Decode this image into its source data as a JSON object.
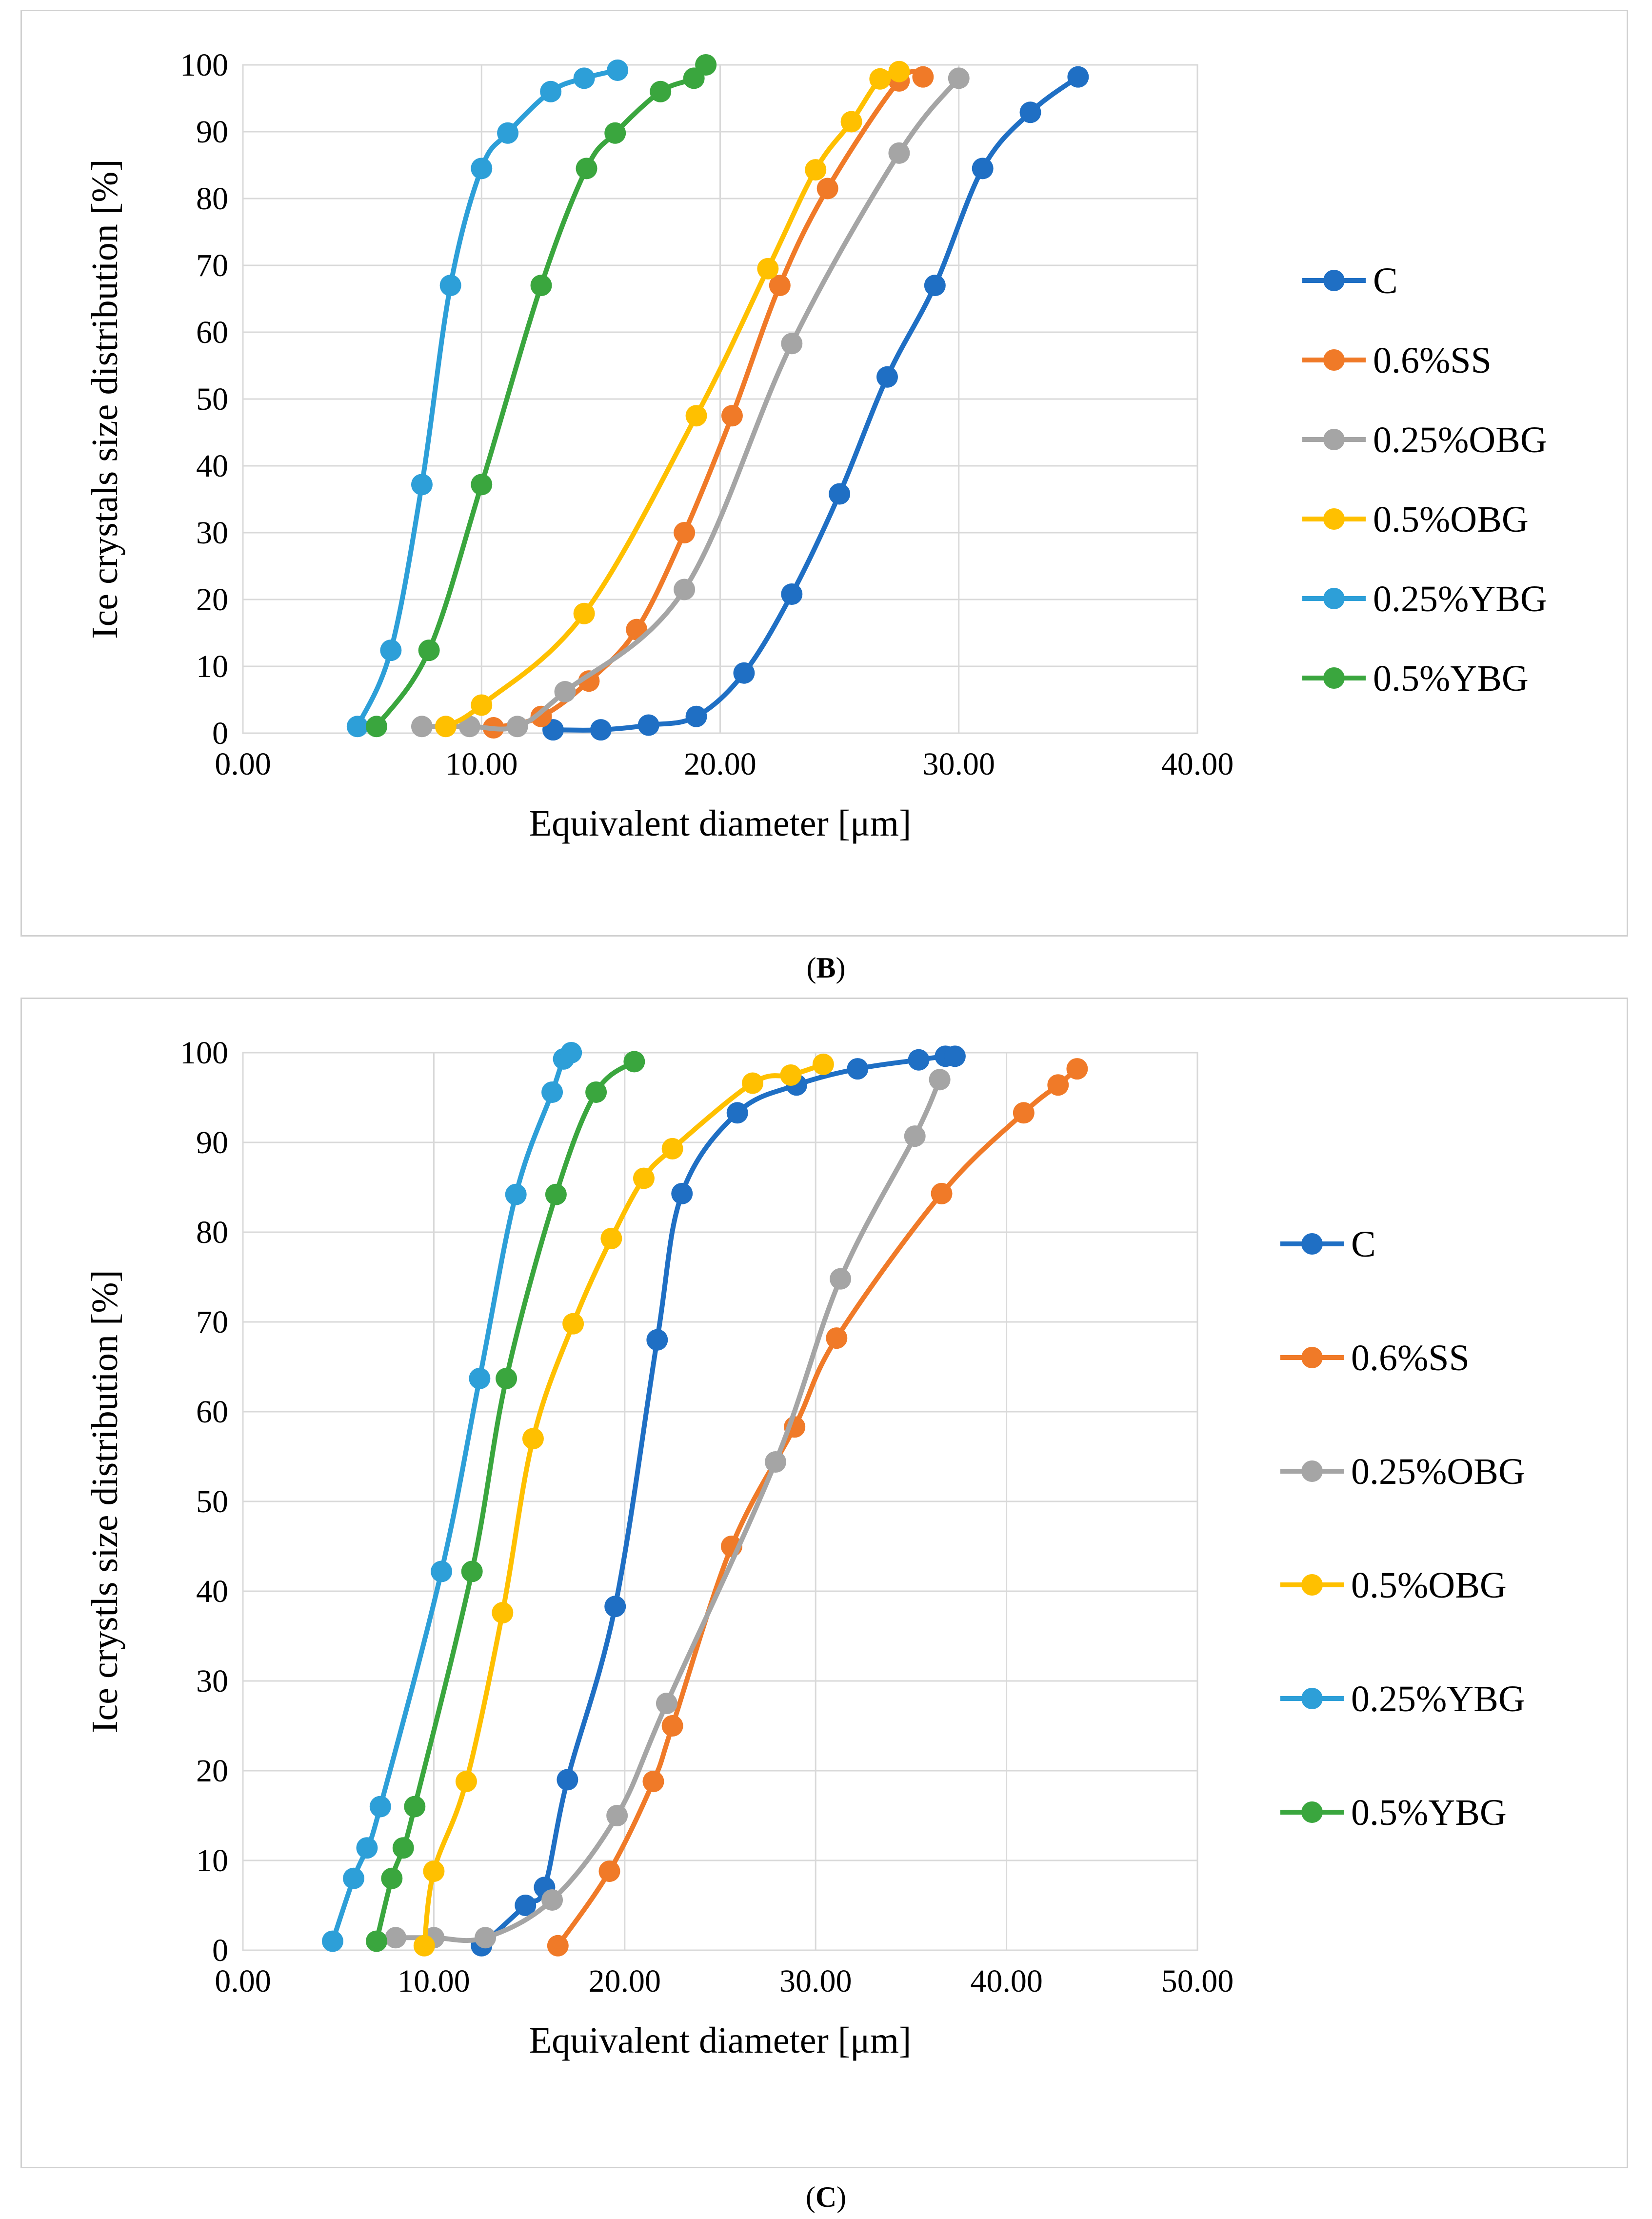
{
  "charts": [
    {
      "id": "B",
      "caption_open": "(",
      "caption_letter": "B",
      "caption_close": ")",
      "chart_data": {
        "type": "line",
        "xlabel": "Equivalent diameter [μm]",
        "ylabel": "Ice crystals size distribution [%]",
        "xlim": [
          0,
          40
        ],
        "ylim": [
          0,
          100
        ],
        "xticks": [
          "0.00",
          "10.00",
          "20.00",
          "30.00",
          "40.00"
        ],
        "yticks": [
          "0",
          "10",
          "20",
          "30",
          "40",
          "50",
          "60",
          "70",
          "80",
          "90",
          "100"
        ],
        "grid": true,
        "legend_position": "right",
        "series": [
          {
            "name": "C",
            "color": "#1f6fc4",
            "points": [
              [
                13.0,
                0.5
              ],
              [
                15.0,
                0.5
              ],
              [
                17.0,
                1.2
              ],
              [
                19.0,
                2.5
              ],
              [
                21.0,
                9.0
              ],
              [
                23.0,
                20.8
              ],
              [
                25.0,
                35.8
              ],
              [
                27.0,
                53.3
              ],
              [
                29.0,
                67.0
              ],
              [
                31.0,
                84.5
              ],
              [
                33.0,
                92.9
              ],
              [
                35.0,
                98.2
              ]
            ]
          },
          {
            "name": "0.6%SS",
            "color": "#f07a28",
            "points": [
              [
                10.5,
                0.8
              ],
              [
                12.5,
                2.5
              ],
              [
                14.5,
                7.8
              ],
              [
                16.5,
                15.5
              ],
              [
                18.5,
                30.0
              ],
              [
                20.5,
                47.5
              ],
              [
                22.5,
                67.0
              ],
              [
                24.5,
                81.5
              ],
              [
                27.5,
                97.6
              ],
              [
                28.5,
                98.2
              ]
            ]
          },
          {
            "name": "0.25%OBG",
            "color": "#a5a5a5",
            "points": [
              [
                7.5,
                1.0
              ],
              [
                9.5,
                1.0
              ],
              [
                11.5,
                1.0
              ],
              [
                13.5,
                6.2
              ],
              [
                18.5,
                21.5
              ],
              [
                23.0,
                58.3
              ],
              [
                27.5,
                86.8
              ],
              [
                30.0,
                98.0
              ]
            ]
          },
          {
            "name": "0.5%OBG",
            "color": "#ffc000",
            "points": [
              [
                8.5,
                1.0
              ],
              [
                10.0,
                4.2
              ],
              [
                14.3,
                17.9
              ],
              [
                19.0,
                47.5
              ],
              [
                22.0,
                69.5
              ],
              [
                24.0,
                84.3
              ],
              [
                25.5,
                91.5
              ],
              [
                26.7,
                97.9
              ],
              [
                27.5,
                99.0
              ]
            ]
          },
          {
            "name": "0.25%YBG",
            "color": "#2d9fd8",
            "points": [
              [
                4.8,
                1.0
              ],
              [
                6.2,
                12.4
              ],
              [
                7.5,
                37.2
              ],
              [
                8.7,
                67.0
              ],
              [
                10.0,
                84.5
              ],
              [
                11.1,
                89.8
              ],
              [
                12.9,
                96.0
              ],
              [
                14.3,
                98.0
              ],
              [
                15.7,
                99.2
              ]
            ]
          },
          {
            "name": "0.5%YBG",
            "color": "#3aa63e",
            "points": [
              [
                5.6,
                1.0
              ],
              [
                7.8,
                12.4
              ],
              [
                10.0,
                37.2
              ],
              [
                12.5,
                67.0
              ],
              [
                14.4,
                84.5
              ],
              [
                15.6,
                89.8
              ],
              [
                17.5,
                96.0
              ],
              [
                18.9,
                98.0
              ],
              [
                19.4,
                100.0
              ]
            ]
          }
        ]
      }
    },
    {
      "id": "C",
      "caption_open": "(",
      "caption_letter": "C",
      "caption_close": ")",
      "chart_data": {
        "type": "line",
        "xlabel": "Equivalent diameter [μm]",
        "ylabel": "Ice crystls size distribution [%]",
        "xlim": [
          0,
          50
        ],
        "ylim": [
          0,
          100
        ],
        "xticks": [
          "0.00",
          "10.00",
          "20.00",
          "30.00",
          "40.00",
          "50.00"
        ],
        "yticks": [
          "0",
          "10",
          "20",
          "30",
          "40",
          "50",
          "60",
          "70",
          "80",
          "90",
          "100"
        ],
        "grid": true,
        "legend_position": "right",
        "series": [
          {
            "name": "C",
            "color": "#1f6fc4",
            "points": [
              [
                12.5,
                0.5
              ],
              [
                14.8,
                5.0
              ],
              [
                15.8,
                7.0
              ],
              [
                17.0,
                19.0
              ],
              [
                19.5,
                38.3
              ],
              [
                21.7,
                68.0
              ],
              [
                23.0,
                84.3
              ],
              [
                25.9,
                93.3
              ],
              [
                29.0,
                96.4
              ],
              [
                32.2,
                98.2
              ],
              [
                35.4,
                99.2
              ],
              [
                36.8,
                99.6
              ],
              [
                37.3,
                99.6
              ]
            ]
          },
          {
            "name": "0.6%SS",
            "color": "#f07a28",
            "points": [
              [
                16.5,
                0.5
              ],
              [
                19.2,
                8.8
              ],
              [
                21.5,
                18.8
              ],
              [
                22.5,
                25.0
              ],
              [
                25.6,
                45.0
              ],
              [
                28.9,
                58.3
              ],
              [
                31.1,
                68.2
              ],
              [
                36.6,
                84.3
              ],
              [
                40.9,
                93.3
              ],
              [
                42.7,
                96.4
              ],
              [
                43.7,
                98.2
              ]
            ]
          },
          {
            "name": "0.25%OBG",
            "color": "#a5a5a5",
            "points": [
              [
                8.0,
                1.4
              ],
              [
                10.0,
                1.4
              ],
              [
                12.7,
                1.4
              ],
              [
                16.2,
                5.6
              ],
              [
                19.6,
                15.0
              ],
              [
                22.2,
                27.5
              ],
              [
                27.9,
                54.4
              ],
              [
                31.3,
                74.8
              ],
              [
                35.2,
                90.7
              ],
              [
                36.5,
                97.0
              ]
            ]
          },
          {
            "name": "0.5%OBG",
            "color": "#ffc000",
            "points": [
              [
                9.5,
                0.5
              ],
              [
                10.0,
                8.8
              ],
              [
                11.7,
                18.8
              ],
              [
                13.6,
                37.6
              ],
              [
                15.2,
                57.0
              ],
              [
                17.3,
                69.8
              ],
              [
                19.3,
                79.3
              ],
              [
                21.0,
                86.0
              ],
              [
                22.5,
                89.3
              ],
              [
                26.7,
                96.6
              ],
              [
                28.7,
                97.5
              ],
              [
                30.4,
                98.7
              ]
            ]
          },
          {
            "name": "0.25%YBG",
            "color": "#2d9fd8",
            "points": [
              [
                4.7,
                1.0
              ],
              [
                5.8,
                8.0
              ],
              [
                6.5,
                11.4
              ],
              [
                7.2,
                16.0
              ],
              [
                10.4,
                42.2
              ],
              [
                12.4,
                63.7
              ],
              [
                14.3,
                84.2
              ],
              [
                16.2,
                95.6
              ],
              [
                16.8,
                99.3
              ],
              [
                17.2,
                100.0
              ]
            ]
          },
          {
            "name": "0.5%YBG",
            "color": "#3aa63e",
            "points": [
              [
                7.0,
                1.0
              ],
              [
                7.8,
                8.0
              ],
              [
                8.4,
                11.4
              ],
              [
                9.0,
                16.0
              ],
              [
                12.0,
                42.2
              ],
              [
                13.8,
                63.7
              ],
              [
                16.4,
                84.2
              ],
              [
                18.5,
                95.6
              ],
              [
                20.5,
                99.0
              ]
            ]
          }
        ]
      }
    }
  ]
}
